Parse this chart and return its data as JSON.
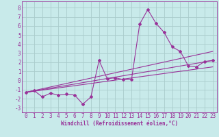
{
  "background_color": "#c8eaea",
  "grid_color": "#aacccc",
  "line_color": "#993399",
  "marker": "D",
  "marker_size": 2.0,
  "line_width": 0.8,
  "xlabel": "Windchill (Refroidissement éolien,°C)",
  "xlabel_fontsize": 5.5,
  "tick_fontsize": 5.5,
  "xlim": [
    -0.5,
    23.5
  ],
  "ylim": [
    -3.5,
    8.7
  ],
  "yticks": [
    -3,
    -2,
    -1,
    0,
    1,
    2,
    3,
    4,
    5,
    6,
    7,
    8
  ],
  "xticks": [
    0,
    1,
    2,
    3,
    4,
    5,
    6,
    7,
    8,
    9,
    10,
    11,
    12,
    13,
    14,
    15,
    16,
    17,
    18,
    19,
    20,
    21,
    22,
    23
  ],
  "series": [
    [
      0,
      -1.3
    ],
    [
      1,
      -1.1
    ],
    [
      2,
      -1.8
    ],
    [
      3,
      -1.4
    ],
    [
      4,
      -1.6
    ],
    [
      5,
      -1.5
    ],
    [
      6,
      -1.6
    ],
    [
      7,
      -2.6
    ],
    [
      8,
      -1.8
    ],
    [
      9,
      2.2
    ],
    [
      10,
      0.2
    ],
    [
      11,
      0.3
    ],
    [
      12,
      0.1
    ],
    [
      13,
      0.1
    ],
    [
      14,
      6.2
    ],
    [
      15,
      7.8
    ],
    [
      16,
      6.3
    ],
    [
      17,
      5.3
    ],
    [
      18,
      3.7
    ],
    [
      19,
      3.2
    ],
    [
      20,
      1.6
    ],
    [
      21,
      1.5
    ],
    [
      22,
      2.1
    ],
    [
      23,
      2.2
    ]
  ],
  "line2_x": [
    0,
    23
  ],
  "line2_y": [
    -1.3,
    2.2
  ],
  "line3_x": [
    0,
    23
  ],
  "line3_y": [
    -1.3,
    3.2
  ],
  "line4_x": [
    0,
    23
  ],
  "line4_y": [
    -1.3,
    1.5
  ]
}
